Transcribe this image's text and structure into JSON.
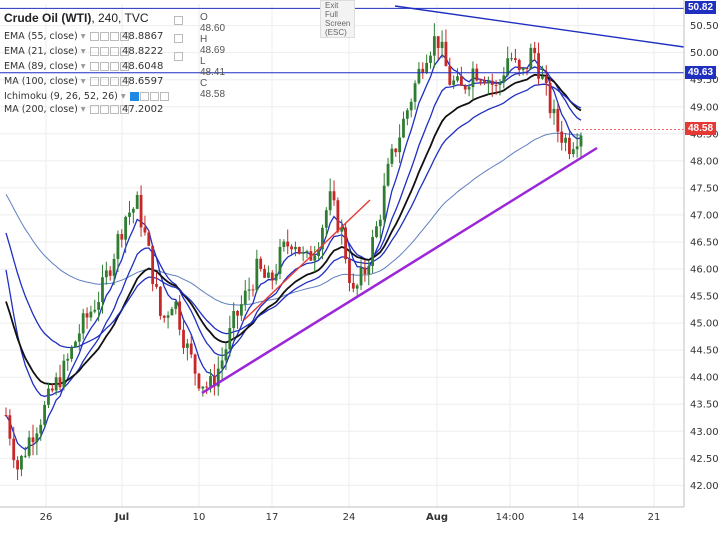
{
  "legend": {
    "symbol": "Crude Oil (WTI)",
    "interval": "240",
    "source": "TVC",
    "ohlc_text": "O 48.60 H 48.69 L 48.41 C 48.58",
    "exit_fullscreen": "Exit Full Screen (ESC)",
    "indicators": [
      {
        "label": "EMA (55, close)",
        "value": "48.8867"
      },
      {
        "label": "EMA (21, close)",
        "value": "48.8222"
      },
      {
        "label": "EMA (89, close)",
        "value": "48.6048"
      },
      {
        "label": "MA (100, close)",
        "value": "48.6597"
      },
      {
        "label": "Ichimoku (9, 26, 52, 26)",
        "value": ""
      },
      {
        "label": "MA (200, close)",
        "value": "47.2002"
      }
    ]
  },
  "price_tags": {
    "top": "50.82",
    "resistance": "49.63",
    "last": "48.58"
  },
  "colors": {
    "up_candle": "#2e7d32",
    "down_candle": "#c62828",
    "ema_blue": "#1f2fbf",
    "ema_black": "#111111",
    "ma_200": "#5f7fbf",
    "trend_purple": "#9b27d8",
    "trend_red": "#e53935",
    "trend_blue": "#1f2fbf",
    "last_price_tag": "#e53935",
    "blue_tag": "#1f2fbf"
  },
  "chart_data": {
    "type": "candlestick",
    "title": "Crude Oil (WTI), 240, TVC",
    "x_ticks": [
      "26",
      "Jul",
      "10",
      "17",
      "24",
      "Aug",
      "14:00",
      "14",
      "21"
    ],
    "y_ticks": [
      "42.00",
      "42.50",
      "43.00",
      "43.50",
      "44.00",
      "44.50",
      "45.00",
      "45.50",
      "46.00",
      "46.50",
      "47.00",
      "47.50",
      "48.00",
      "48.50",
      "49.00",
      "49.50",
      "50.00",
      "50.50"
    ],
    "ylim": [
      41.6,
      50.9
    ],
    "close_path": [
      43.3,
      42.3,
      42.9,
      43.3,
      43.8,
      44.2,
      44.8,
      45.2,
      45.6,
      46.3,
      47.0,
      47.2,
      46.2,
      45.0,
      45.5,
      44.6,
      44.0,
      43.8,
      44.3,
      45.0,
      45.5,
      46.0,
      45.7,
      46.3,
      46.6,
      46.1,
      46.5,
      47.3,
      46.7,
      45.5,
      46.0,
      46.8,
      47.9,
      48.6,
      49.3,
      50.0,
      50.3,
      49.5,
      49.3,
      49.7,
      49.6,
      49.3,
      50.0,
      49.5,
      50.1,
      49.3,
      48.6,
      48.3,
      48.58
    ],
    "series": [
      {
        "name": "EMA (55, close)",
        "last": 48.8867
      },
      {
        "name": "EMA (21, close)",
        "last": 48.8222
      },
      {
        "name": "EMA (89, close)",
        "last": 48.6048
      },
      {
        "name": "MA (100, close)",
        "last": 48.6597
      },
      {
        "name": "MA (200, close)",
        "last": 47.2002
      }
    ],
    "horizontal_levels": [
      50.82,
      49.63
    ],
    "last_price": 48.58
  }
}
